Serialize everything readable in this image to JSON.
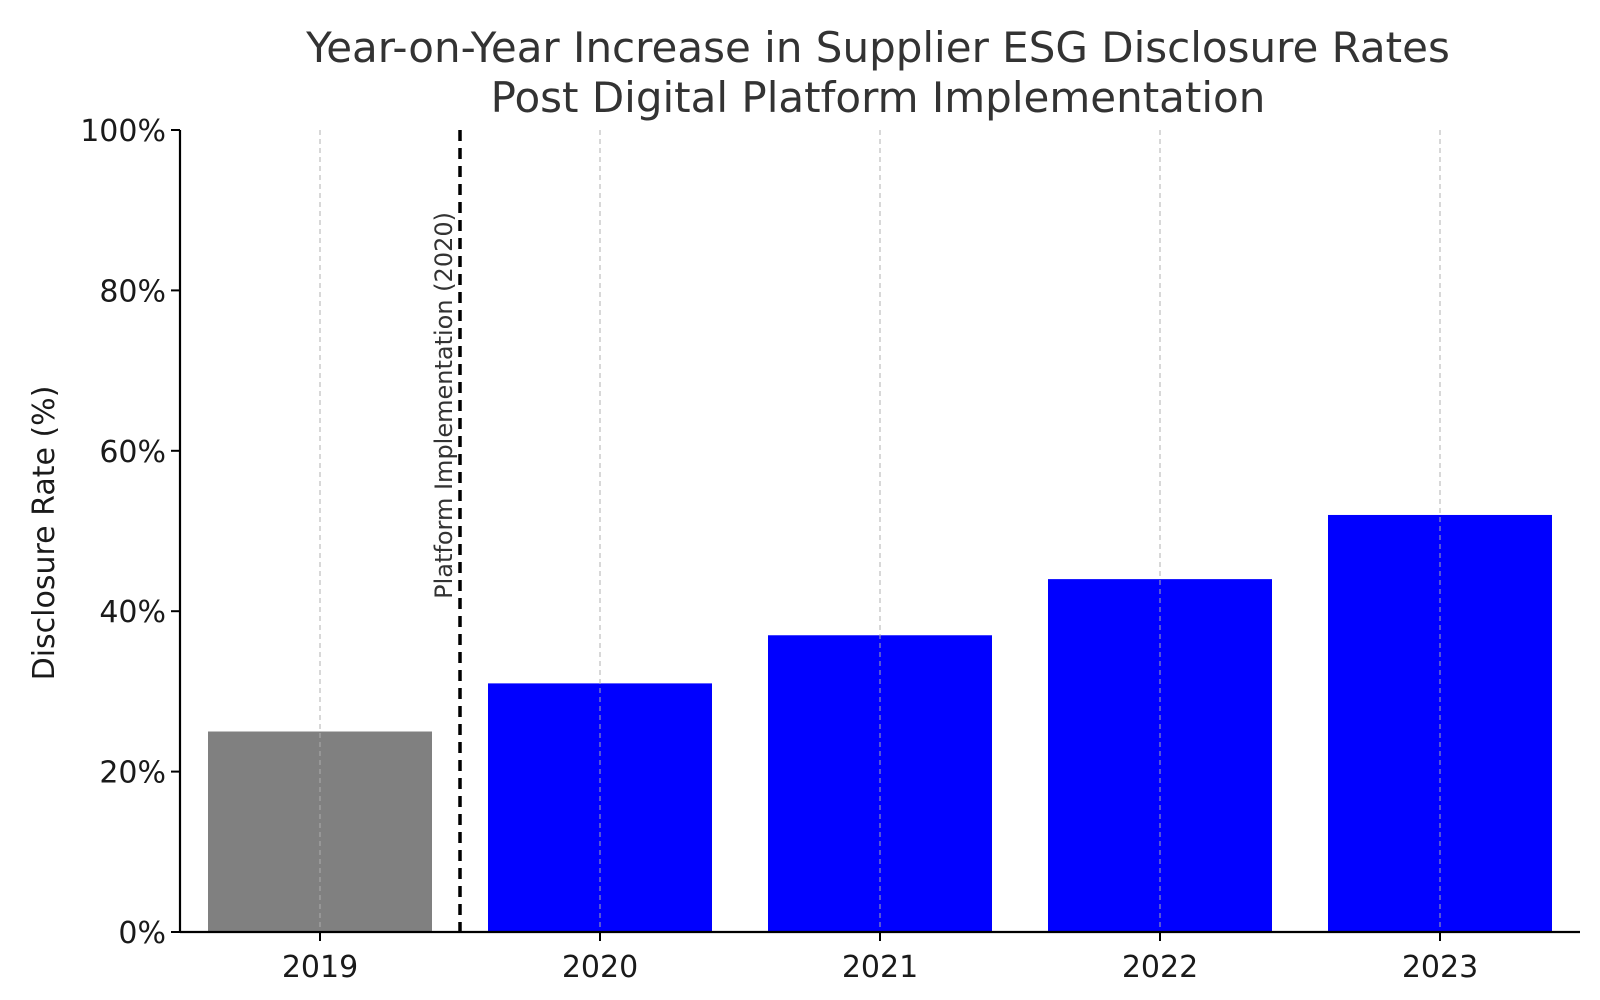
{
  "chart_data": {
    "type": "bar",
    "title_lines": [
      "Year-on-Year Increase in Supplier ESG Disclosure Rates",
      "Post Digital Platform Implementation"
    ],
    "xlabel": "",
    "ylabel": "Disclosure Rate (%)",
    "categories": [
      "2019",
      "2020",
      "2021",
      "2022",
      "2023"
    ],
    "values": [
      25,
      31,
      37,
      44,
      52
    ],
    "bar_colors": [
      "#808080",
      "#0000ff",
      "#0000ff",
      "#0000ff",
      "#0000ff"
    ],
    "ylim": [
      0,
      100
    ],
    "y_ticks": [
      0,
      20,
      40,
      60,
      80,
      100
    ],
    "y_tick_labels": [
      "0%",
      "20%",
      "40%",
      "60%",
      "80%",
      "100%"
    ],
    "grid": "vertical dashed at categories",
    "annotation": {
      "text": "Platform Implementation (2020)",
      "position_between": [
        "2019",
        "2020"
      ],
      "line_style": "dashed",
      "line_color": "#000000"
    }
  }
}
